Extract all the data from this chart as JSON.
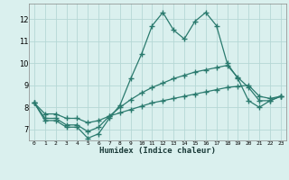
{
  "xlabel": "Humidex (Indice chaleur)",
  "x": [
    0,
    1,
    2,
    3,
    4,
    5,
    6,
    7,
    8,
    9,
    10,
    11,
    12,
    13,
    14,
    15,
    16,
    17,
    18,
    19,
    20,
    21,
    22,
    23
  ],
  "line1": [
    8.2,
    7.4,
    7.4,
    7.1,
    7.1,
    6.6,
    6.8,
    7.5,
    8.1,
    9.3,
    10.4,
    11.7,
    12.3,
    11.5,
    11.1,
    11.9,
    12.3,
    11.7,
    10.0,
    9.3,
    8.3,
    8.0,
    8.3,
    8.5
  ],
  "line2": [
    8.2,
    7.5,
    7.5,
    7.2,
    7.2,
    6.9,
    7.1,
    7.6,
    8.0,
    8.35,
    8.65,
    8.9,
    9.1,
    9.3,
    9.45,
    9.6,
    9.7,
    9.8,
    9.9,
    9.35,
    8.9,
    8.3,
    8.3,
    8.5
  ],
  "line3": [
    8.2,
    7.7,
    7.7,
    7.5,
    7.5,
    7.3,
    7.4,
    7.6,
    7.75,
    7.9,
    8.05,
    8.2,
    8.3,
    8.4,
    8.5,
    8.6,
    8.7,
    8.8,
    8.9,
    8.95,
    9.0,
    8.5,
    8.4,
    8.5
  ],
  "line_color": "#2a7a6e",
  "bg_color": "#daf0ee",
  "grid_color": "#b5d8d5",
  "ylim": [
    6.5,
    12.7
  ],
  "yticks": [
    7,
    8,
    9,
    10,
    11,
    12
  ],
  "xlim": [
    -0.5,
    23.5
  ],
  "xticks": [
    0,
    1,
    2,
    3,
    4,
    5,
    6,
    7,
    8,
    9,
    10,
    11,
    12,
    13,
    14,
    15,
    16,
    17,
    18,
    19,
    20,
    21,
    22,
    23
  ],
  "xtick_labels": [
    "0",
    "1",
    "2",
    "3",
    "4",
    "5",
    "6",
    "7",
    "8",
    "9",
    "10",
    "11",
    "12",
    "13",
    "14",
    "15",
    "16",
    "17",
    "18",
    "19",
    "20",
    "21",
    "22",
    "23"
  ]
}
